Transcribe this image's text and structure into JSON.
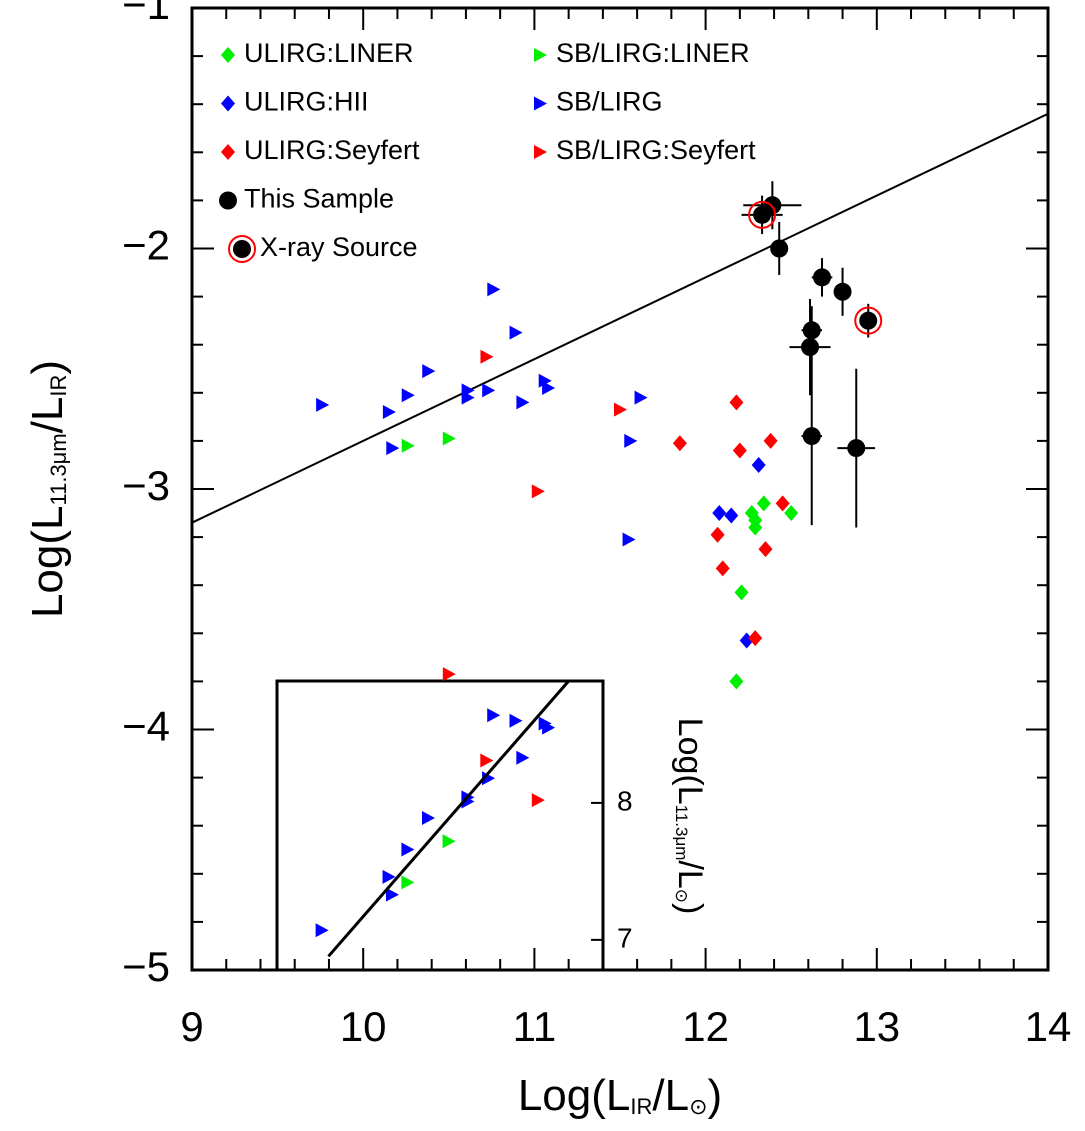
{
  "chart_data": {
    "type": "scatter",
    "x_label": [
      "Log(L",
      "IR",
      "/L",
      "⊙",
      ")"
    ],
    "y_label": [
      "Log(L",
      "11.3μm",
      "/L",
      "IR",
      ")"
    ],
    "xlim": [
      9,
      14
    ],
    "ylim": [
      -5,
      -1
    ],
    "xticks": [
      9,
      10,
      11,
      12,
      13,
      14
    ],
    "yticks": [
      {
        "value": -1,
        "label": "−1"
      },
      {
        "value": -2,
        "label": "−2"
      },
      {
        "value": -3,
        "label": "−3"
      },
      {
        "value": -4,
        "label": "−4"
      },
      {
        "value": -5,
        "label": "−5"
      }
    ],
    "xminorticks": [
      9.2,
      9.4,
      9.6,
      9.8,
      10.2,
      10.4,
      10.6,
      10.8,
      11.2,
      11.4,
      11.6,
      11.8,
      12.2,
      12.4,
      12.6,
      12.8,
      13.2,
      13.4,
      13.6,
      13.8
    ],
    "yminorticks": [
      -1.2,
      -1.4,
      -1.6,
      -1.8,
      -2.2,
      -2.4,
      -2.6,
      -2.8,
      -3.2,
      -3.4,
      -3.6,
      -3.8,
      -4.2,
      -4.4,
      -4.6,
      -4.8
    ],
    "series": [
      {
        "name": "ULIRG:LINER",
        "color": "#00ee00",
        "marker": "diamond",
        "x": [
          12.21,
          12.18,
          12.27,
          12.29,
          12.29,
          12.34,
          12.5
        ],
        "values": [
          -3.43,
          -3.8,
          -3.1,
          -3.16,
          -3.13,
          -3.06,
          -3.1
        ]
      },
      {
        "name": "ULIRG:HII",
        "color": "#0000ff",
        "marker": "diamond",
        "x": [
          12.08,
          12.15,
          12.31,
          12.24
        ],
        "values": [
          -3.1,
          -3.11,
          -2.9,
          -3.63
        ]
      },
      {
        "name": "ULIRG:Seyfert",
        "color": "#ff0000",
        "marker": "diamond",
        "x": [
          11.85,
          12.18,
          12.2,
          12.38,
          12.07,
          12.1,
          12.35,
          12.29,
          12.45
        ],
        "values": [
          -2.81,
          -2.64,
          -2.84,
          -2.8,
          -3.19,
          -3.33,
          -3.25,
          -3.62,
          -3.06
        ]
      },
      {
        "name": "SB/LIRG:LINER",
        "color": "#00ee00",
        "marker": "triangle",
        "x": [
          10.26,
          10.5
        ],
        "values": [
          -2.82,
          -2.79
        ]
      },
      {
        "name": "SB/LIRG",
        "color": "#0000ff",
        "marker": "triangle",
        "x": [
          9.76,
          10.15,
          10.17,
          10.26,
          10.38,
          10.61,
          10.61,
          10.73,
          10.76,
          10.89,
          10.93,
          11.06,
          11.08,
          11.56,
          11.62,
          11.55
        ],
        "values": [
          -2.65,
          -2.68,
          -2.83,
          -2.61,
          -2.51,
          -2.59,
          -2.62,
          -2.59,
          -2.17,
          -2.35,
          -2.64,
          -2.55,
          -2.58,
          -2.8,
          -2.62,
          -3.21
        ]
      },
      {
        "name": "SB/LIRG:Seyfert",
        "color": "#ff0000",
        "marker": "triangle",
        "x": [
          10.72,
          11.02,
          11.5,
          10.5
        ],
        "values": [
          -2.45,
          -3.01,
          -2.67,
          -3.77
        ]
      },
      {
        "name": "This Sample",
        "color": "#000000",
        "marker": "circle",
        "x": [
          12.39,
          12.33,
          12.43,
          12.68,
          12.8,
          12.95,
          12.62,
          12.61,
          12.62,
          12.88
        ],
        "values": [
          -1.82,
          -1.86,
          -2.0,
          -2.12,
          -2.18,
          -2.3,
          -2.34,
          -2.41,
          -2.78,
          -2.83
        ],
        "x_err": [
          0.17,
          0.12,
          0.05,
          0.06,
          0.05,
          0.04,
          0.06,
          0.12,
          0.06,
          0.11
        ],
        "y_err": [
          0.1,
          0.08,
          0.11,
          0.08,
          0.1,
          0.07,
          0.1,
          0.2,
          0.37,
          0.33
        ]
      },
      {
        "name": "X-ray Source",
        "color": "#ff0000",
        "marker": "ring",
        "x": [
          12.33,
          12.95
        ],
        "values": [
          -1.86,
          -2.3
        ]
      }
    ],
    "fit_line": {
      "color": "#000000",
      "x": [
        9,
        14
      ],
      "values": [
        -3.14,
        -1.44
      ]
    },
    "inset": {
      "y_label": [
        "Log(L",
        "11.3μm",
        "/L",
        "⊙",
        ")"
      ],
      "xlim": [
        9.5,
        11.4
      ],
      "ylim": [
        6.78,
        8.89
      ],
      "yticks": [
        7,
        8
      ],
      "series": [
        {
          "color": "#0000ff",
          "marker": "triangle",
          "x": [
            9.76,
            10.15,
            10.17,
            10.26,
            10.38,
            10.61,
            10.61,
            10.73,
            10.76,
            10.89,
            10.93,
            11.06,
            11.08
          ],
          "values": [
            7.07,
            7.46,
            7.33,
            7.66,
            7.89,
            8.04,
            8.01,
            8.18,
            8.64,
            8.6,
            8.33,
            8.58,
            8.55
          ]
        },
        {
          "color": "#ff0000",
          "marker": "triangle",
          "x": [
            10.72,
            11.02
          ],
          "values": [
            8.31,
            8.02
          ]
        },
        {
          "color": "#00ee00",
          "marker": "triangle",
          "x": [
            10.26,
            10.5
          ],
          "values": [
            7.42,
            7.72
          ]
        }
      ],
      "fit_line": {
        "color": "#000000",
        "x": [
          9.8,
          11.2
        ],
        "values": [
          6.88,
          8.89
        ]
      }
    }
  }
}
